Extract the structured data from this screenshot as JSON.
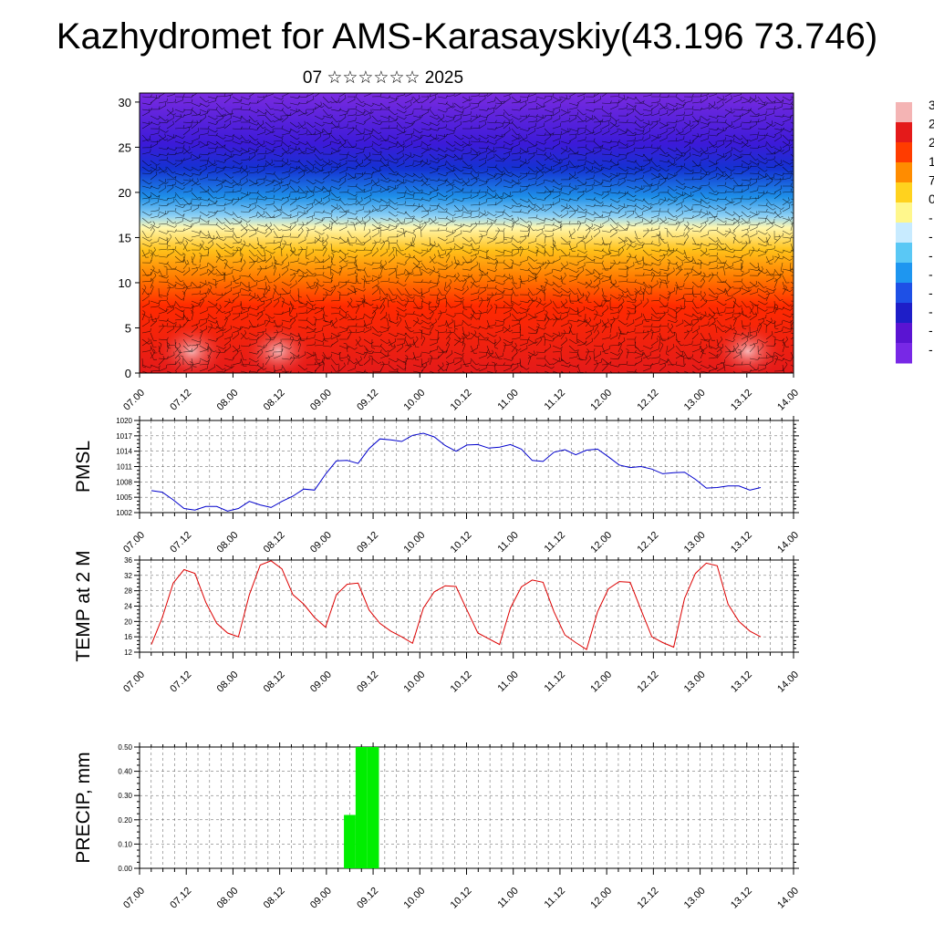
{
  "title": "Kazhydromet for AMS-Karasayskiy(43.196 73.746)",
  "subtitle": "07 ☆☆☆☆☆☆ 2025",
  "time_labels": [
    "07.00",
    "07.12",
    "08.00",
    "08.12",
    "09.00",
    "09.12",
    "10.00",
    "10.12",
    "11.00",
    "11.12",
    "12.00",
    "12.12",
    "13.00",
    "13.12",
    "14.00"
  ],
  "chart_data": [
    {
      "type": "heatmap",
      "title": "",
      "x": [
        "07.00",
        "07.12",
        "08.00",
        "08.12",
        "09.00",
        "09.12",
        "10.00",
        "10.12",
        "11.00",
        "11.12",
        "12.00",
        "12.12",
        "13.00",
        "13.12",
        "14.00"
      ],
      "ylim": [
        0,
        31
      ],
      "yticks": [
        0,
        5,
        10,
        15,
        20,
        25,
        30
      ],
      "colorbar_labels": [
        "3",
        "2",
        "2",
        "1",
        "7",
        "0",
        "-",
        "-",
        "-",
        "-",
        "-",
        "-",
        "-",
        "-"
      ],
      "colorbar_colors": [
        "#f4b4b4",
        "#e41a1a",
        "#ff3c00",
        "#ff8c00",
        "#ffd21e",
        "#fff78c",
        "#c8ebff",
        "#5ac8f5",
        "#1e96f0",
        "#1e50e6",
        "#1e1ec8",
        "#5a14d2",
        "#7828e6"
      ],
      "grid": false
    },
    {
      "type": "line",
      "ylabel": "PMSL",
      "ylim": [
        1002,
        1020
      ],
      "yticks": [
        1002,
        1005,
        1008,
        1011,
        1014,
        1017,
        1020
      ],
      "grid": true,
      "series": [
        {
          "color": "#0000cc",
          "values": [
            1006.3,
            1006,
            1004.5,
            1002.8,
            1002.5,
            1003.2,
            1003.2,
            1002.3,
            1002.8,
            1004.2,
            1003.5,
            1003.0,
            1004.2,
            1005.2,
            1006.6,
            1006.4,
            1009.5,
            1012.1,
            1012.2,
            1011.6,
            1014.5,
            1016.4,
            1016.2,
            1015.9,
            1017.1,
            1017.5,
            1016.8,
            1015.1,
            1014.0,
            1015.2,
            1015.3,
            1014.6,
            1014.8,
            1015.3,
            1014.4,
            1012.2,
            1012.0,
            1013.8,
            1014.3,
            1013.3,
            1014.2,
            1014.4,
            1012.9,
            1011.3,
            1010.8,
            1011.0,
            1010.5,
            1009.6,
            1009.8,
            1009.9,
            1008.5,
            1006.8,
            1006.9,
            1007.2,
            1007.2,
            1006.4,
            1006.9
          ]
        }
      ]
    },
    {
      "type": "line",
      "ylabel": "TEMP at 2 M",
      "ylim": [
        12,
        36
      ],
      "yticks": [
        12,
        16,
        20,
        24,
        28,
        32,
        36
      ],
      "grid": true,
      "series": [
        {
          "color": "#dd0000",
          "values": [
            14,
            21,
            30,
            33.5,
            32.5,
            25,
            19.5,
            17,
            16,
            27,
            34.7,
            35.8,
            33.7,
            27,
            24.5,
            21,
            18.5,
            27,
            29.7,
            30,
            23,
            19.5,
            17.5,
            16,
            14.3,
            23.5,
            27.7,
            29.3,
            29.1,
            23,
            17,
            15.5,
            14,
            23.5,
            29,
            30.8,
            30.2,
            22.5,
            16.5,
            14.5,
            12.7,
            22.5,
            28.5,
            30.4,
            30.2,
            23,
            16,
            14.5,
            13.3,
            26,
            32.5,
            35.2,
            34.5,
            24.5,
            20,
            17.5,
            16
          ]
        }
      ]
    },
    {
      "type": "bar",
      "ylabel": "PRECIP, mm",
      "ylim": [
        0,
        0.5
      ],
      "yticks": [
        "0.00",
        "0.10",
        "0.20",
        "0.30",
        "0.40",
        "0.50"
      ],
      "grid": true,
      "color": "#00ee00",
      "bars": [
        {
          "x": "09.06",
          "value": 0.22
        },
        {
          "x": "09.09",
          "value": 0.5
        },
        {
          "x": "09.12",
          "value": 0.5
        }
      ]
    }
  ]
}
